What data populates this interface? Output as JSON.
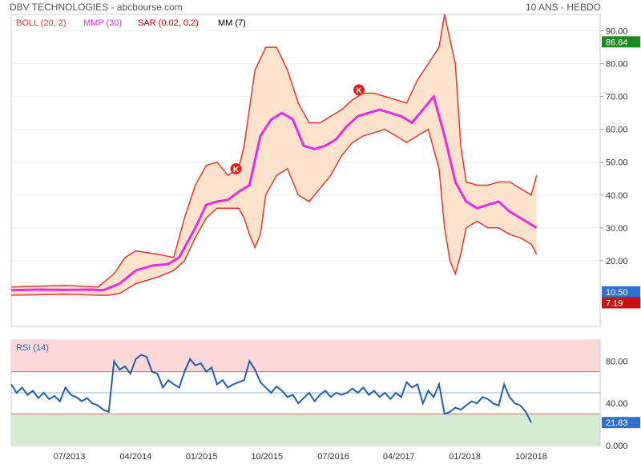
{
  "header": {
    "title": "DBV TECHNOLOGIES - abcbourse.com",
    "period": "10 ANS - HEBDO"
  },
  "chart_data": [
    {
      "type": "line",
      "panel": "price",
      "legend": [
        {
          "label": "BOLL (20, 2)",
          "color": "#e8362c"
        },
        {
          "label": "MMP (30)",
          "color": "#e62ee0"
        },
        {
          "label": "SAR (0.02, 0.2)",
          "color": "#c00000"
        },
        {
          "label": "MM (7)",
          "color": "#000000"
        }
      ],
      "ylim": [
        0,
        95
      ],
      "ytick_labels": [
        "90.00",
        "80.00",
        "70.00",
        "60.00",
        "50.00",
        "40.00",
        "30.00",
        "20.00"
      ],
      "yticks": [
        90,
        80,
        70,
        60,
        50,
        40,
        30,
        20
      ],
      "last_value_labels": [
        {
          "label": "86.64",
          "value": 86.64,
          "color": "#1e8a1e"
        },
        {
          "label": "10.50",
          "value": 10.5,
          "color": "#2f6fd6"
        },
        {
          "label": "7.19",
          "value": 7.19,
          "color": "#d01010"
        }
      ],
      "x_labels": [
        {
          "label": "07/2013",
          "pos": 0.118
        },
        {
          "label": "04/2014",
          "pos": 0.253
        },
        {
          "label": "01/2015",
          "pos": 0.387
        },
        {
          "label": "10/2015",
          "pos": 0.52
        },
        {
          "label": "07/2016",
          "pos": 0.655
        },
        {
          "label": "04/2017",
          "pos": 0.788
        },
        {
          "label": "01/2018",
          "pos": 0.922
        },
        {
          "label": "10/2018",
          "pos": 1.057
        }
      ],
      "markers": [
        {
          "label": "K",
          "x": 0.415,
          "y": 48
        },
        {
          "label": "K",
          "x": 0.642,
          "y": 72
        }
      ],
      "series": [
        {
          "name": "MMP (30)",
          "color": "#e62ee0",
          "points": [
            [
              0,
              11
            ],
            [
              0.05,
              11.2
            ],
            [
              0.1,
              11.1
            ],
            [
              0.15,
              11.2
            ],
            [
              0.17,
              11.0
            ],
            [
              0.2,
              13
            ],
            [
              0.23,
              17
            ],
            [
              0.26,
              18.5
            ],
            [
              0.29,
              19
            ],
            [
              0.31,
              21
            ],
            [
              0.34,
              30
            ],
            [
              0.36,
              37
            ],
            [
              0.38,
              38
            ],
            [
              0.4,
              38.5
            ],
            [
              0.42,
              41
            ],
            [
              0.44,
              43
            ],
            [
              0.46,
              58
            ],
            [
              0.48,
              63
            ],
            [
              0.5,
              65
            ],
            [
              0.52,
              63
            ],
            [
              0.54,
              55
            ],
            [
              0.56,
              54
            ],
            [
              0.58,
              55
            ],
            [
              0.6,
              57
            ],
            [
              0.62,
              61
            ],
            [
              0.64,
              64
            ],
            [
              0.66,
              65
            ],
            [
              0.68,
              66
            ],
            [
              0.7,
              65
            ],
            [
              0.72,
              64
            ],
            [
              0.74,
              62
            ],
            [
              0.76,
              66
            ],
            [
              0.78,
              70
            ],
            [
              0.8,
              58
            ],
            [
              0.82,
              44
            ],
            [
              0.84,
              38
            ],
            [
              0.86,
              36
            ],
            [
              0.88,
              37
            ],
            [
              0.9,
              38
            ],
            [
              0.92,
              35
            ],
            [
              0.94,
              33
            ],
            [
              0.96,
              31
            ],
            [
              0.97,
              30
            ]
          ]
        },
        {
          "name": "BOLL upper",
          "color": "#e8362c",
          "points": [
            [
              0,
              12
            ],
            [
              0.1,
              12.5
            ],
            [
              0.16,
              12
            ],
            [
              0.19,
              16
            ],
            [
              0.21,
              21
            ],
            [
              0.23,
              23
            ],
            [
              0.27,
              22
            ],
            [
              0.3,
              21
            ],
            [
              0.32,
              33
            ],
            [
              0.34,
              43
            ],
            [
              0.36,
              49
            ],
            [
              0.38,
              50
            ],
            [
              0.4,
              46
            ],
            [
              0.42,
              48
            ],
            [
              0.43,
              55
            ],
            [
              0.45,
              78
            ],
            [
              0.47,
              85
            ],
            [
              0.49,
              85
            ],
            [
              0.51,
              78
            ],
            [
              0.53,
              68
            ],
            [
              0.55,
              62
            ],
            [
              0.57,
              62
            ],
            [
              0.59,
              64
            ],
            [
              0.61,
              66
            ],
            [
              0.63,
              69
            ],
            [
              0.65,
              71
            ],
            [
              0.67,
              71
            ],
            [
              0.69,
              70
            ],
            [
              0.71,
              69
            ],
            [
              0.73,
              68
            ],
            [
              0.75,
              75
            ],
            [
              0.77,
              80
            ],
            [
              0.79,
              85
            ],
            [
              0.8,
              95
            ],
            [
              0.82,
              80
            ],
            [
              0.83,
              55
            ],
            [
              0.84,
              44
            ],
            [
              0.86,
              43
            ],
            [
              0.88,
              43
            ],
            [
              0.9,
              44
            ],
            [
              0.92,
              44
            ],
            [
              0.94,
              42
            ],
            [
              0.96,
              40
            ],
            [
              0.97,
              46
            ]
          ]
        },
        {
          "name": "BOLL lower",
          "color": "#e8362c",
          "points": [
            [
              0,
              9.5
            ],
            [
              0.1,
              9.8
            ],
            [
              0.16,
              9.5
            ],
            [
              0.18,
              9.5
            ],
            [
              0.2,
              10
            ],
            [
              0.23,
              13
            ],
            [
              0.27,
              15
            ],
            [
              0.3,
              17
            ],
            [
              0.32,
              20
            ],
            [
              0.34,
              27
            ],
            [
              0.36,
              33
            ],
            [
              0.38,
              36
            ],
            [
              0.4,
              36
            ],
            [
              0.42,
              36
            ],
            [
              0.43,
              33
            ],
            [
              0.44,
              28
            ],
            [
              0.45,
              24
            ],
            [
              0.46,
              28
            ],
            [
              0.47,
              40
            ],
            [
              0.49,
              46
            ],
            [
              0.51,
              48
            ],
            [
              0.53,
              40
            ],
            [
              0.55,
              38
            ],
            [
              0.57,
              42
            ],
            [
              0.59,
              46
            ],
            [
              0.61,
              52
            ],
            [
              0.63,
              56
            ],
            [
              0.65,
              58
            ],
            [
              0.67,
              59
            ],
            [
              0.69,
              60
            ],
            [
              0.71,
              58
            ],
            [
              0.73,
              56
            ],
            [
              0.75,
              58
            ],
            [
              0.77,
              60
            ],
            [
              0.79,
              48
            ],
            [
              0.8,
              30
            ],
            [
              0.81,
              20
            ],
            [
              0.82,
              16
            ],
            [
              0.83,
              22
            ],
            [
              0.84,
              30
            ],
            [
              0.86,
              32
            ],
            [
              0.88,
              30
            ],
            [
              0.9,
              30
            ],
            [
              0.92,
              28
            ],
            [
              0.94,
              27
            ],
            [
              0.96,
              25
            ],
            [
              0.97,
              22
            ]
          ]
        }
      ]
    },
    {
      "type": "line",
      "panel": "rsi",
      "legend": [
        {
          "label": "RSI (14)",
          "color": "#2160b0"
        }
      ],
      "ylim": [
        0,
        100
      ],
      "ytick_labels": [
        "80.00",
        "40.00",
        "0.000"
      ],
      "yticks": [
        80,
        40,
        0
      ],
      "levels": [
        70,
        50,
        30
      ],
      "last_value_labels": [
        {
          "label": "21.83",
          "value": 21.83,
          "color": "#2f6fd6"
        }
      ],
      "series": [
        {
          "name": "RSI (14)",
          "color": "#2160b0",
          "points": [
            [
              0,
              58
            ],
            [
              0.01,
              50
            ],
            [
              0.02,
              55
            ],
            [
              0.03,
              48
            ],
            [
              0.04,
              52
            ],
            [
              0.05,
              45
            ],
            [
              0.06,
              50
            ],
            [
              0.07,
              44
            ],
            [
              0.08,
              47
            ],
            [
              0.09,
              42
            ],
            [
              0.1,
              55
            ],
            [
              0.11,
              48
            ],
            [
              0.12,
              46
            ],
            [
              0.13,
              42
            ],
            [
              0.14,
              45
            ],
            [
              0.15,
              40
            ],
            [
              0.16,
              38
            ],
            [
              0.17,
              34
            ],
            [
              0.18,
              32
            ],
            [
              0.19,
              80
            ],
            [
              0.2,
              72
            ],
            [
              0.21,
              75
            ],
            [
              0.22,
              68
            ],
            [
              0.23,
              82
            ],
            [
              0.24,
              86
            ],
            [
              0.25,
              84
            ],
            [
              0.26,
              70
            ],
            [
              0.27,
              68
            ],
            [
              0.28,
              55
            ],
            [
              0.29,
              62
            ],
            [
              0.3,
              58
            ],
            [
              0.31,
              55
            ],
            [
              0.32,
              70
            ],
            [
              0.33,
              82
            ],
            [
              0.34,
              76
            ],
            [
              0.35,
              78
            ],
            [
              0.36,
              70
            ],
            [
              0.37,
              74
            ],
            [
              0.38,
              58
            ],
            [
              0.39,
              62
            ],
            [
              0.4,
              55
            ],
            [
              0.41,
              58
            ],
            [
              0.42,
              60
            ],
            [
              0.43,
              62
            ],
            [
              0.44,
              80
            ],
            [
              0.45,
              72
            ],
            [
              0.46,
              60
            ],
            [
              0.47,
              55
            ],
            [
              0.48,
              50
            ],
            [
              0.49,
              56
            ],
            [
              0.5,
              52
            ],
            [
              0.51,
              46
            ],
            [
              0.52,
              48
            ],
            [
              0.53,
              40
            ],
            [
              0.54,
              45
            ],
            [
              0.55,
              50
            ],
            [
              0.56,
              42
            ],
            [
              0.57,
              48
            ],
            [
              0.58,
              52
            ],
            [
              0.59,
              46
            ],
            [
              0.6,
              50
            ],
            [
              0.61,
              48
            ],
            [
              0.62,
              50
            ],
            [
              0.63,
              54
            ],
            [
              0.64,
              50
            ],
            [
              0.65,
              55
            ],
            [
              0.66,
              48
            ],
            [
              0.67,
              52
            ],
            [
              0.68,
              46
            ],
            [
              0.69,
              50
            ],
            [
              0.7,
              44
            ],
            [
              0.71,
              50
            ],
            [
              0.72,
              46
            ],
            [
              0.73,
              60
            ],
            [
              0.74,
              55
            ],
            [
              0.75,
              58
            ],
            [
              0.76,
              40
            ],
            [
              0.77,
              52
            ],
            [
              0.78,
              46
            ],
            [
              0.79,
              58
            ],
            [
              0.8,
              30
            ],
            [
              0.81,
              32
            ],
            [
              0.82,
              36
            ],
            [
              0.83,
              34
            ],
            [
              0.84,
              38
            ],
            [
              0.85,
              42
            ],
            [
              0.86,
              40
            ],
            [
              0.87,
              46
            ],
            [
              0.88,
              44
            ],
            [
              0.89,
              40
            ],
            [
              0.9,
              38
            ],
            [
              0.91,
              58
            ],
            [
              0.92,
              46
            ],
            [
              0.93,
              40
            ],
            [
              0.94,
              38
            ],
            [
              0.95,
              32
            ],
            [
              0.96,
              21.83
            ]
          ]
        }
      ]
    }
  ]
}
